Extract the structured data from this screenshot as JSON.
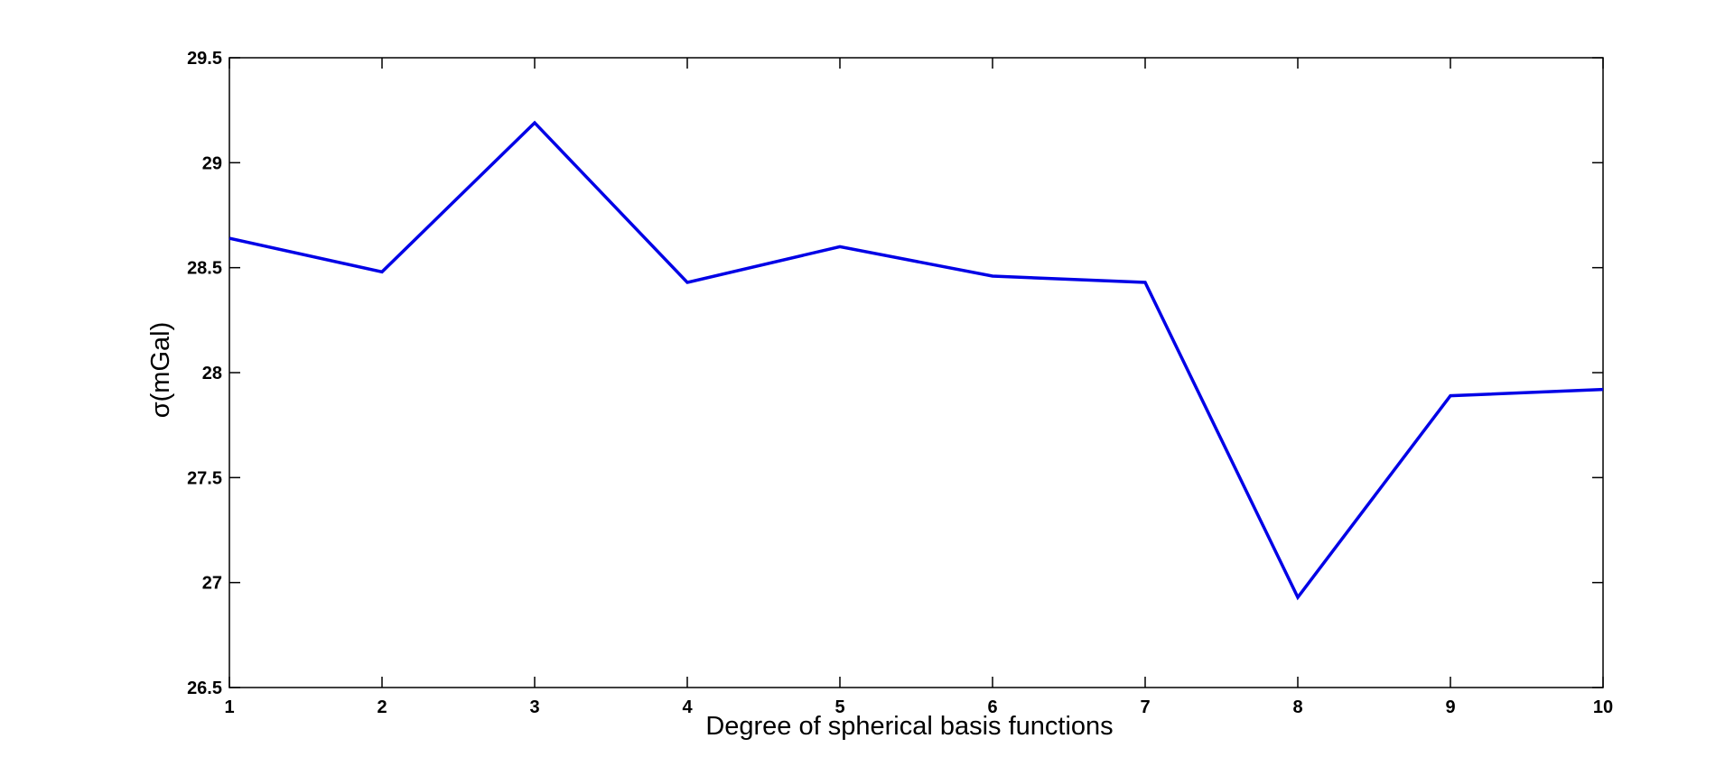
{
  "chart_data": {
    "type": "line",
    "title": "",
    "xlabel": "Degree of spherical basis functions",
    "ylabel": "σ(mGal)",
    "xlim": [
      1,
      10
    ],
    "ylim": [
      26.5,
      29.5
    ],
    "xticks": [
      1,
      2,
      3,
      4,
      5,
      6,
      7,
      8,
      9,
      10
    ],
    "yticks": [
      26.5,
      27,
      27.5,
      28,
      28.5,
      29,
      29.5
    ],
    "xtick_labels": [
      "1",
      "2",
      "3",
      "4",
      "5",
      "6",
      "7",
      "8",
      "9",
      "10"
    ],
    "ytick_labels": [
      "26.5",
      "27",
      "27.5",
      "28",
      "28.5",
      "29",
      "29.5"
    ],
    "grid": false,
    "legend": "none",
    "series": [
      {
        "color": "#0000e6",
        "x": [
          1,
          2,
          3,
          4,
          5,
          6,
          7,
          8,
          9,
          10
        ],
        "y": [
          28.64,
          28.48,
          29.19,
          28.43,
          28.6,
          28.46,
          28.43,
          26.93,
          27.89,
          27.92
        ]
      }
    ]
  }
}
